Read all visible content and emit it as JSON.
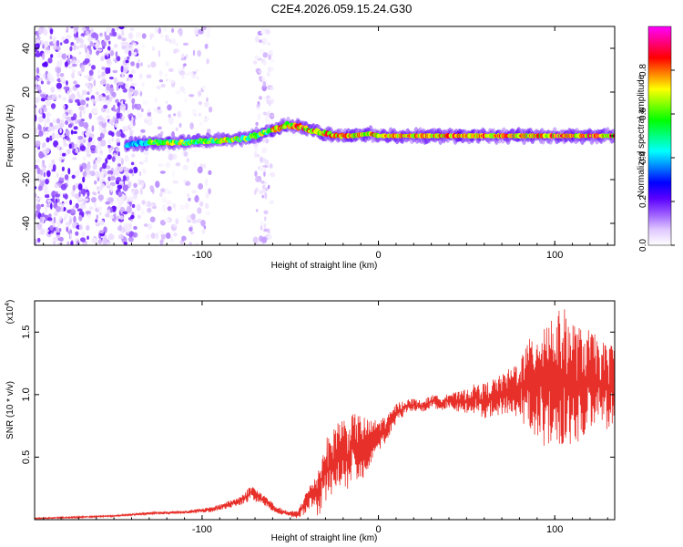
{
  "title": "C2E4.2026.059.15.24.G30",
  "chart_data": [
    {
      "type": "heatmap",
      "name": "spectrogram",
      "xlabel": "Height of straight line (km)",
      "ylabel": "Frequency (Hz)",
      "xlim": [
        -195,
        134
      ],
      "ylim": [
        -50,
        50
      ],
      "xticks": [
        -100,
        0,
        100
      ],
      "yticks": [
        -40,
        -20,
        0,
        20,
        40
      ],
      "colorbar": {
        "label": "Normalized spectral amplitude",
        "range": [
          0,
          1
        ],
        "ticks": [
          0.0,
          0.2,
          0.4,
          0.6,
          0.8
        ],
        "colors": [
          "#ffffff",
          "#e0c8ff",
          "#9b5cff",
          "#5a00ff",
          "#0000ff",
          "#0080ff",
          "#00ffff",
          "#00ff80",
          "#00ff00",
          "#80ff00",
          "#ffff00",
          "#ff8000",
          "#ff0000",
          "#ff0080",
          "#ff00ff"
        ]
      },
      "ridge": [
        {
          "x": -143,
          "f": -4
        },
        {
          "x": -130,
          "f": -3
        },
        {
          "x": -110,
          "f": -3
        },
        {
          "x": -90,
          "f": -2
        },
        {
          "x": -75,
          "f": -1
        },
        {
          "x": -62,
          "f": 2
        },
        {
          "x": -52,
          "f": 5
        },
        {
          "x": -45,
          "f": 4
        },
        {
          "x": -35,
          "f": 2
        },
        {
          "x": -25,
          "f": 0
        },
        {
          "x": -15,
          "f": 0
        },
        {
          "x": -5,
          "f": 1
        },
        {
          "x": 0,
          "f": 0
        },
        {
          "x": 20,
          "f": 0
        },
        {
          "x": 60,
          "f": 0
        },
        {
          "x": 100,
          "f": 0
        },
        {
          "x": 134,
          "f": 0
        }
      ]
    },
    {
      "type": "line",
      "name": "snr",
      "xlabel": "Height of straight line (km)",
      "ylabel": "SNR (10 * v/v)",
      "scale_label": "(x10",
      "scale_exp": "4",
      "scale_close": ")",
      "xlim": [
        -195,
        134
      ],
      "ylim": [
        0,
        1.75
      ],
      "xticks": [
        -100,
        0,
        100
      ],
      "yticks": [
        0.5,
        1.0,
        1.5
      ],
      "ytick_labels": [
        "0.5",
        "1.0",
        "1.5"
      ],
      "line_color": "#e8302a",
      "series": [
        {
          "name": "SNR",
          "x": [
            -195,
            -170,
            -150,
            -130,
            -110,
            -95,
            -85,
            -78,
            -72,
            -68,
            -63,
            -58,
            -52,
            -46,
            -42,
            -38,
            -34,
            -30,
            -26,
            -22,
            -18,
            -14,
            -10,
            -6,
            -2,
            2,
            6,
            10,
            15,
            20,
            25,
            30,
            35,
            40,
            45,
            50,
            55,
            60,
            65,
            70,
            75,
            80,
            85,
            90,
            95,
            100,
            105,
            110,
            115,
            120,
            125,
            130,
            134
          ],
          "y": [
            0.01,
            0.02,
            0.03,
            0.05,
            0.06,
            0.08,
            0.12,
            0.15,
            0.22,
            0.18,
            0.14,
            0.08,
            0.05,
            0.04,
            0.12,
            0.2,
            0.22,
            0.4,
            0.45,
            0.55,
            0.5,
            0.6,
            0.55,
            0.6,
            0.65,
            0.7,
            0.75,
            0.85,
            0.9,
            0.92,
            0.9,
            0.95,
            0.93,
            0.96,
            0.94,
            0.95,
            0.97,
            0.95,
            0.98,
            1.0,
            1.02,
            1.05,
            1.08,
            1.1,
            1.12,
            1.1,
            1.15,
            1.1,
            1.08,
            1.12,
            1.1,
            1.05,
            1.08
          ],
          "spread": [
            0.005,
            0.006,
            0.006,
            0.01,
            0.012,
            0.02,
            0.03,
            0.04,
            0.06,
            0.05,
            0.04,
            0.03,
            0.02,
            0.03,
            0.08,
            0.1,
            0.2,
            0.25,
            0.25,
            0.3,
            0.3,
            0.25,
            0.3,
            0.2,
            0.15,
            0.12,
            0.1,
            0.08,
            0.06,
            0.05,
            0.05,
            0.05,
            0.06,
            0.06,
            0.08,
            0.1,
            0.12,
            0.14,
            0.15,
            0.16,
            0.2,
            0.25,
            0.35,
            0.45,
            0.55,
            0.55,
            0.55,
            0.5,
            0.45,
            0.4,
            0.35,
            0.35,
            0.35
          ]
        }
      ]
    }
  ]
}
